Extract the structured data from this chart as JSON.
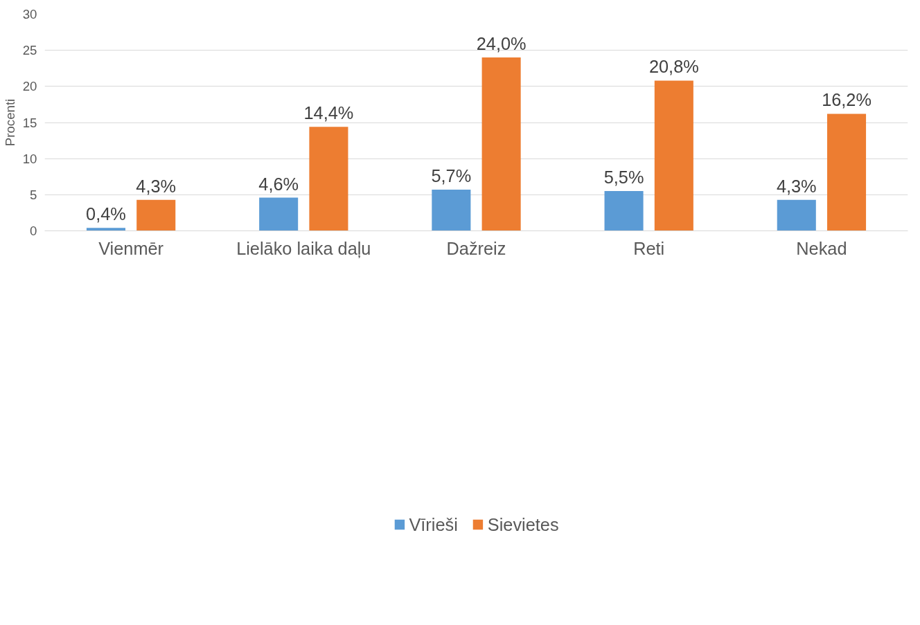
{
  "chart_data": {
    "type": "bar",
    "ylabel": "Procenti",
    "categories": [
      "Vienmēr",
      "Lielāko laika daļu",
      "Dažreiz",
      "Reti",
      "Nekad"
    ],
    "series": [
      {
        "name": "Vīrieši",
        "color": "#5b9bd5",
        "values": [
          0.4,
          4.6,
          5.7,
          5.5,
          4.3
        ],
        "value_labels": [
          "0,4%",
          "4,6%",
          "5,7%",
          "5,5%",
          "4,3%"
        ]
      },
      {
        "name": "Sievietes",
        "color": "#ed7d31",
        "values": [
          4.3,
          14.4,
          24.0,
          20.8,
          16.2
        ],
        "value_labels": [
          "4,3%",
          "14,4%",
          "24,0%",
          "20,8%",
          "16,2%"
        ]
      }
    ],
    "ylim": [
      0,
      30
    ],
    "yticks": [
      0,
      5,
      10,
      15,
      20,
      25,
      30
    ],
    "grid": "y",
    "legend": "bottom"
  }
}
